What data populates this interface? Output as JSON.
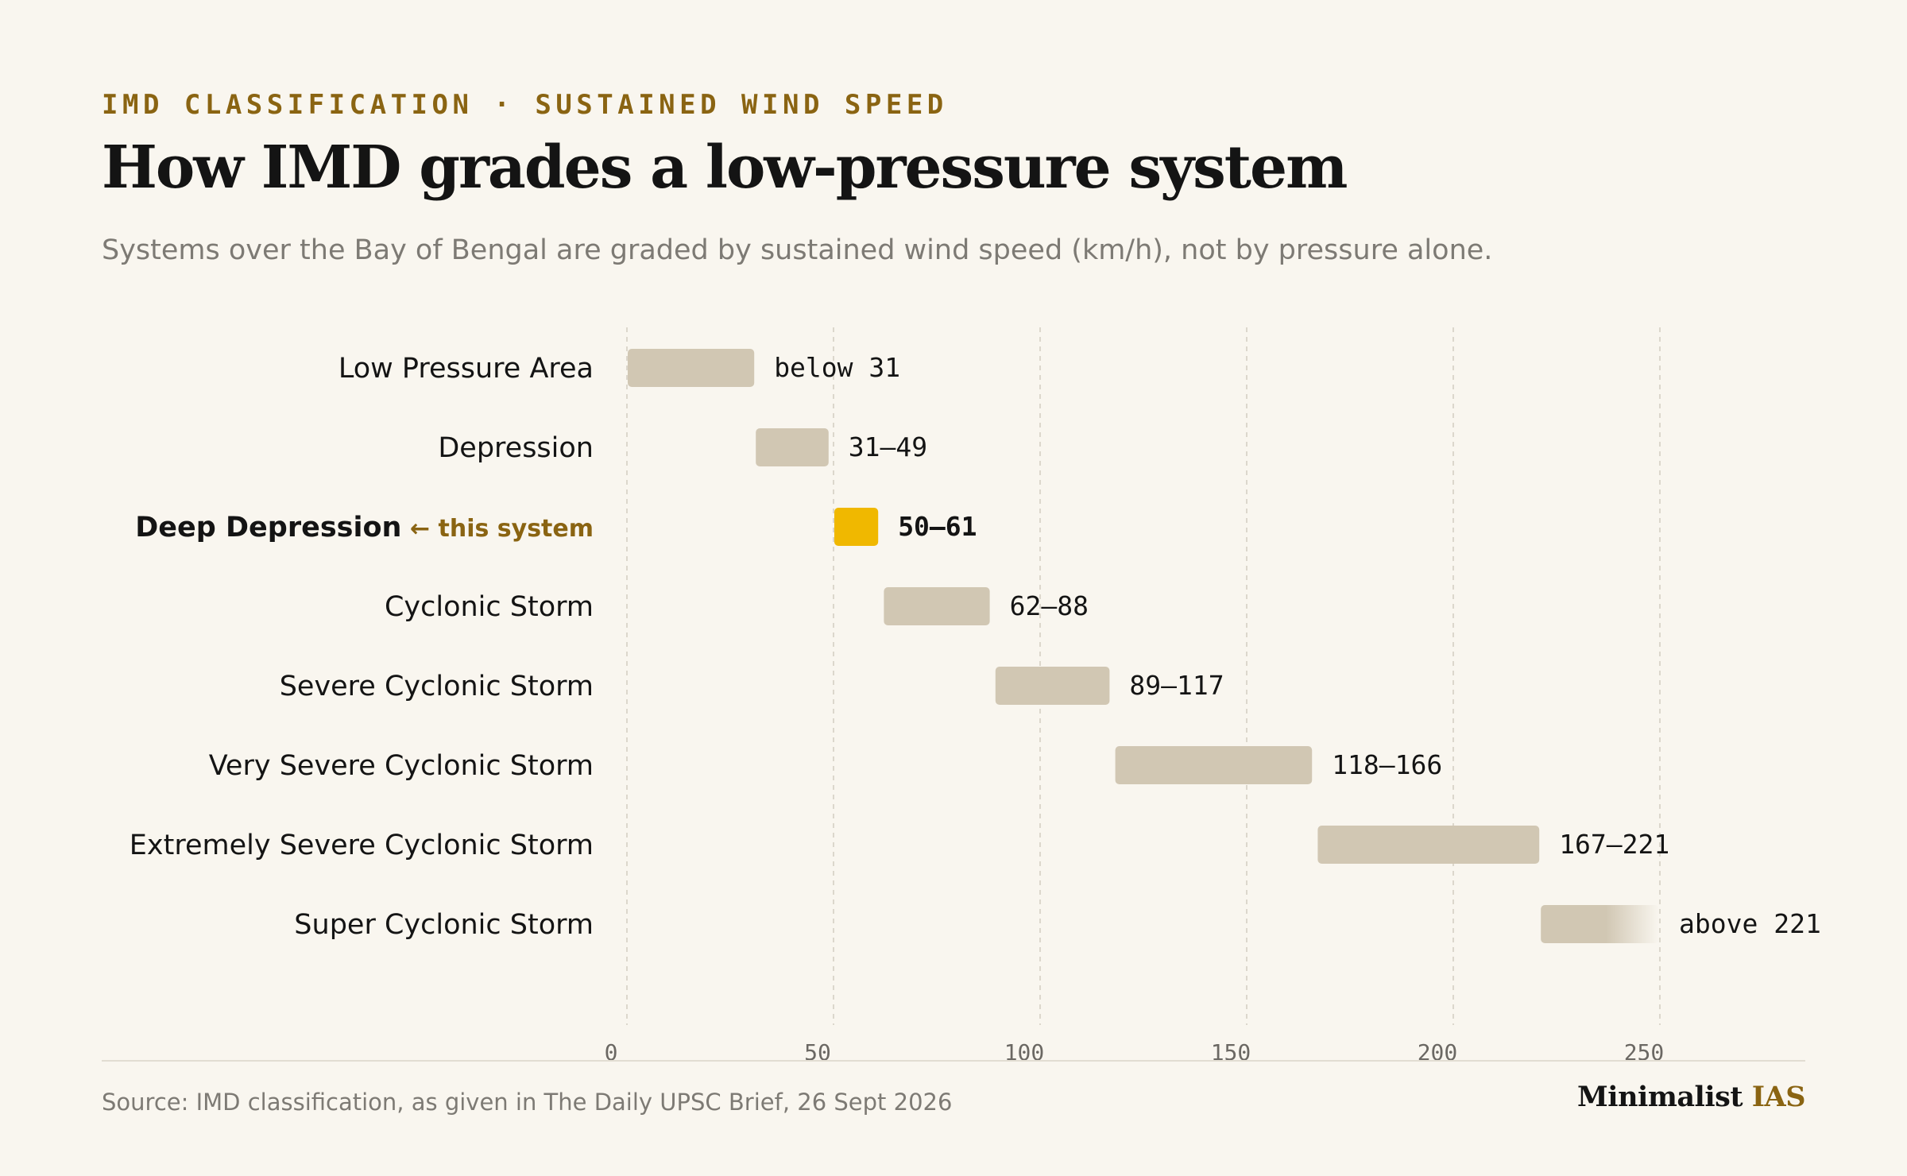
{
  "header": {
    "eyebrow": "IMD CLASSIFICATION · SUSTAINED WIND SPEED",
    "title": "How IMD grades a low-pressure system",
    "subtitle": "Systems over the Bay of Bengal are graded by sustained wind speed (km/h), not by pressure alone."
  },
  "footer": {
    "source": "Source: IMD classification, as given in The Daily UPSC Brief, 26 Sept 2026",
    "brand_name": "Minimalist",
    "brand_accent": "IAS"
  },
  "colors": {
    "bar": "#d1c7b3",
    "highlight": "#f0b800",
    "annotation": "#8a6412",
    "grid": "#dcd7cc",
    "text": "#141414",
    "tick": "#6b6863"
  },
  "chart_data": {
    "type": "bar",
    "orientation": "horizontal-range",
    "xlabel": "",
    "ylabel": "",
    "xlim": [
      0,
      285
    ],
    "xticks": [
      0,
      50,
      100,
      150,
      200,
      250
    ],
    "grid": "vertical dashed",
    "categories": [
      "Low Pressure Area",
      "Depression",
      "Deep Depression",
      "Cyclonic Storm",
      "Severe Cyclonic Storm",
      "Very Severe Cyclonic Storm",
      "Extremely Severe Cyclonic Storm",
      "Super Cyclonic Storm"
    ],
    "ranges": [
      {
        "start": 0,
        "end": 31,
        "label": "below 31"
      },
      {
        "start": 31,
        "end": 49,
        "label": "31–49"
      },
      {
        "start": 50,
        "end": 61,
        "label": "50–61"
      },
      {
        "start": 62,
        "end": 88,
        "label": "62–88"
      },
      {
        "start": 89,
        "end": 117,
        "label": "89–117"
      },
      {
        "start": 118,
        "end": 166,
        "label": "118–166"
      },
      {
        "start": 167,
        "end": 221,
        "label": "167–221"
      },
      {
        "start": 221,
        "end": 250,
        "label": "above 221",
        "open_ended": true
      }
    ],
    "highlight_index": 2,
    "highlight_annotation": "← this system"
  }
}
